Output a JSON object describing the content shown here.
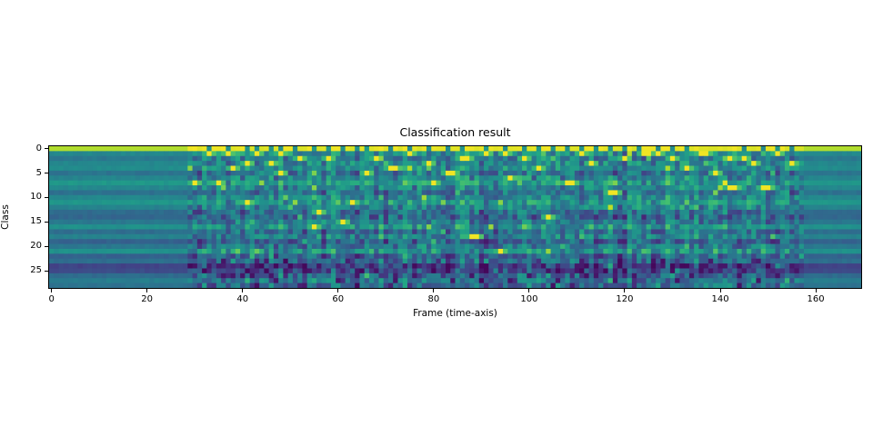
{
  "chart_data": {
    "type": "heatmap",
    "title": "Classification result",
    "xlabel": "Frame (time-axis)",
    "ylabel": "Class",
    "x_ticks": [
      0,
      20,
      40,
      60,
      80,
      100,
      120,
      140,
      160
    ],
    "y_ticks": [
      0,
      5,
      10,
      15,
      20,
      25
    ],
    "x_range": [
      -0.5,
      169.5
    ],
    "y_range": [
      28.5,
      -0.5
    ],
    "n_frames": 170,
    "n_classes": 29,
    "grid": false,
    "legend": false,
    "colorbar": false,
    "colormap": "viridis",
    "colormap_stops": [
      [
        0.0,
        "#440154"
      ],
      [
        0.1,
        "#482475"
      ],
      [
        0.2,
        "#414487"
      ],
      [
        0.3,
        "#355f8d"
      ],
      [
        0.4,
        "#2a788e"
      ],
      [
        0.5,
        "#21918c"
      ],
      [
        0.6,
        "#22a884"
      ],
      [
        0.7,
        "#44bf70"
      ],
      [
        0.8,
        "#7ad151"
      ],
      [
        0.9,
        "#bddf26"
      ],
      [
        1.0,
        "#fde725"
      ]
    ],
    "description": "Posteriorgram-style heatmap: class 0 dominates (bright yellow top row); frames 0-29 and 158-169 are smooth horizontal teal bands (silence); frames 29-158 are noisy with scattered bright class activations and dark low-probability patches in bottom rows.",
    "value_model": {
      "row_base": [
        0.88,
        0.46,
        0.4,
        0.46,
        0.48,
        0.38,
        0.45,
        0.53,
        0.46,
        0.37,
        0.46,
        0.52,
        0.44,
        0.35,
        0.33,
        0.4,
        0.5,
        0.36,
        0.44,
        0.31,
        0.4,
        0.5,
        0.31,
        0.36,
        0.2,
        0.23,
        0.35,
        0.42,
        0.38
      ],
      "quiet_regions": [
        [
          0,
          29
        ],
        [
          158,
          170
        ]
      ],
      "active_region": [
        29,
        158
      ],
      "row0": {
        "quiet": 0.88,
        "active": 0.96,
        "dip": 0.5,
        "dips": [
          33,
          37,
          41,
          43,
          46,
          48,
          51,
          55,
          58,
          61,
          64,
          66,
          71,
          75,
          79,
          83,
          86,
          91,
          95,
          99,
          102,
          105,
          108,
          111,
          114,
          117,
          120,
          123,
          127,
          130,
          133,
          145,
          149,
          152,
          155
        ]
      },
      "bright_spots": [
        [
          30,
          7
        ],
        [
          33,
          1
        ],
        [
          35,
          7
        ],
        [
          37,
          1
        ],
        [
          38,
          4
        ],
        [
          41,
          3
        ],
        [
          41,
          11
        ],
        [
          43,
          1
        ],
        [
          46,
          3
        ],
        [
          48,
          1
        ],
        [
          48,
          5
        ],
        [
          52,
          2
        ],
        [
          55,
          16
        ],
        [
          56,
          13
        ],
        [
          58,
          2
        ],
        [
          61,
          15
        ],
        [
          63,
          11
        ],
        [
          66,
          5
        ],
        [
          68,
          2
        ],
        [
          71,
          4
        ],
        [
          72,
          4
        ],
        [
          75,
          1
        ],
        [
          79,
          3
        ],
        [
          80,
          7
        ],
        [
          83,
          5
        ],
        [
          84,
          5
        ],
        [
          86,
          2
        ],
        [
          87,
          2
        ],
        [
          88,
          18
        ],
        [
          89,
          18
        ],
        [
          91,
          1
        ],
        [
          94,
          21
        ],
        [
          95,
          1
        ],
        [
          96,
          6
        ],
        [
          99,
          2
        ],
        [
          102,
          4
        ],
        [
          104,
          14
        ],
        [
          108,
          7
        ],
        [
          109,
          7
        ],
        [
          111,
          1
        ],
        [
          113,
          3
        ],
        [
          117,
          9
        ],
        [
          118,
          9
        ],
        [
          120,
          2
        ],
        [
          124,
          1
        ],
        [
          125,
          1
        ],
        [
          127,
          1
        ],
        [
          130,
          2
        ],
        [
          133,
          4
        ],
        [
          136,
          1
        ],
        [
          137,
          1
        ],
        [
          139,
          5
        ],
        [
          142,
          2
        ],
        [
          142,
          8
        ],
        [
          143,
          8
        ],
        [
          145,
          2
        ],
        [
          147,
          3
        ],
        [
          149,
          8
        ],
        [
          150,
          8
        ],
        [
          152,
          1
        ],
        [
          155,
          3
        ]
      ],
      "bright_value": 0.98,
      "bright_halo": 0.72,
      "dark_spots": [
        [
          36,
          26
        ],
        [
          38,
          26
        ],
        [
          40,
          26
        ],
        [
          46,
          26
        ],
        [
          47,
          27
        ],
        [
          54,
          25
        ],
        [
          56,
          24
        ],
        [
          60,
          27
        ],
        [
          64,
          26
        ],
        [
          68,
          25
        ],
        [
          72,
          27
        ],
        [
          76,
          26
        ],
        [
          80,
          24
        ],
        [
          84,
          27
        ],
        [
          88,
          26
        ],
        [
          90,
          25
        ],
        [
          96,
          27
        ],
        [
          100,
          26
        ],
        [
          106,
          27
        ],
        [
          110,
          25
        ],
        [
          114,
          26
        ],
        [
          118,
          27
        ],
        [
          122,
          26
        ],
        [
          126,
          25
        ],
        [
          131,
          27
        ],
        [
          134,
          26
        ],
        [
          138,
          25
        ],
        [
          140,
          24
        ],
        [
          141,
          24
        ],
        [
          144,
          26
        ],
        [
          148,
          27
        ],
        [
          152,
          26
        ],
        [
          156,
          25
        ]
      ],
      "dark_value": 0.06,
      "noise": {
        "seed": 7,
        "quiet_amp": 0.02,
        "active_amp": 0.16,
        "column_amp": 0.09,
        "sparkle_chance": 0.05,
        "sparkle_boost": 0.22,
        "deep_row_start": 23,
        "deep_chance": 0.3,
        "deep_drop": 0.17
      }
    }
  }
}
